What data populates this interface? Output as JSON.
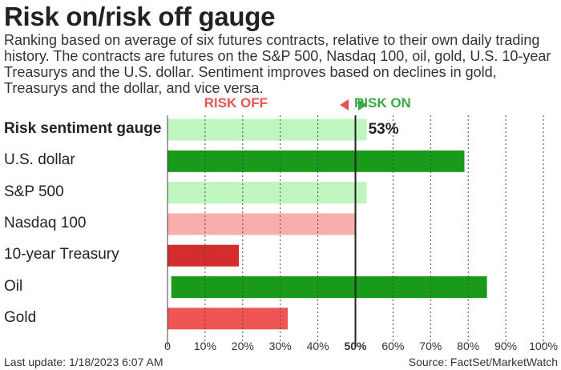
{
  "title": "Risk on/risk off gauge",
  "subtitle": "Ranking based on average of six futures contracts, relative to their own daily trading history. The contracts are futures on the S&P 500, Nasdaq 100, oil, gold, U.S. 10-year Treasurys and the U.S. dollar. Sentiment improves based on declines in gold, Treasurys and the dollar, and vice versa.",
  "legend": {
    "risk_off": "RISK OFF",
    "risk_on": "RISK ON"
  },
  "footer": {
    "last_update": "Last update: 1/18/2023 6:07 AM",
    "source": "Source: FactSet/MarketWatch"
  },
  "colors": {
    "green_dark": "#1a9a1a",
    "green_light": "#bff5bf",
    "red_light": "#f8aeaa",
    "red_dark": "#d42d2d",
    "red_mid": "#ef5555",
    "risk_off": "#e8554e",
    "risk_on": "#3aa845"
  },
  "chart_data": {
    "type": "bar",
    "orientation": "horizontal",
    "categories": [
      "Risk sentiment gauge",
      "U.S. dollar",
      "S&P 500",
      "Nasdaq 100",
      "10-year Treasury",
      "Oil",
      "Gold"
    ],
    "values": [
      53,
      79,
      53,
      50,
      19,
      85,
      32
    ],
    "bar_colors": [
      "#bff5bf",
      "#1a9a1a",
      "#bff5bf",
      "#f8aeaa",
      "#d42d2d",
      "#1a9a1a",
      "#ef5555"
    ],
    "data_labels": [
      "53%",
      "",
      "",
      "",
      "",
      "",
      ""
    ],
    "xlim": [
      0,
      100
    ],
    "xticks": [
      "0",
      "10%",
      "20%",
      "30%",
      "40%",
      "50%",
      "60%",
      "70%",
      "80%",
      "90%",
      "100%"
    ],
    "grid": true
  }
}
